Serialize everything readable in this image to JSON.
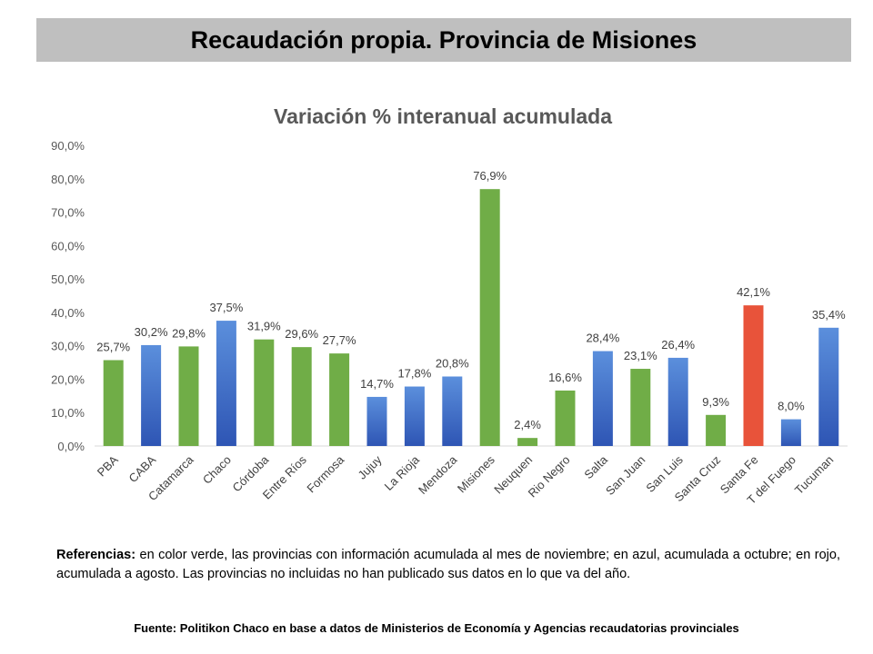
{
  "header": {
    "title": "Recaudación propia. Provincia de Misiones"
  },
  "colors": {
    "green": "#70ad47",
    "blue_top": "#5b8fdc",
    "blue_bottom": "#2e55b4",
    "red": "#e8533a"
  },
  "chart_data": {
    "type": "bar",
    "title": "Variación % interanual acumulada",
    "xlabel": "",
    "ylabel": "",
    "ylim": [
      0,
      90
    ],
    "yticks": [
      "0,0%",
      "10,0%",
      "20,0%",
      "30,0%",
      "40,0%",
      "50,0%",
      "60,0%",
      "70,0%",
      "80,0%",
      "90,0%"
    ],
    "categories": [
      "PBA",
      "CABA",
      "Catamarca",
      "Chaco",
      "Córdoba",
      "Entre Ríos",
      "Formosa",
      "Jujuy",
      "La Rioja",
      "Mendoza",
      "Misiones",
      "Neuquen",
      "Rio Negro",
      "Salta",
      "San Juan",
      "San Luis",
      "Santa Cruz",
      "Santa Fe",
      "T del Fuego",
      "Tucuman"
    ],
    "values": [
      25.7,
      30.2,
      29.8,
      37.5,
      31.9,
      29.6,
      27.7,
      14.7,
      17.8,
      20.8,
      76.9,
      2.4,
      16.6,
      28.4,
      23.1,
      26.4,
      9.3,
      42.1,
      8.0,
      35.4
    ],
    "labels": [
      "25,7%",
      "30,2%",
      "29,8%",
      "37,5%",
      "31,9%",
      "29,6%",
      "27,7%",
      "14,7%",
      "17,8%",
      "20,8%",
      "76,9%",
      "2,4%",
      "16,6%",
      "28,4%",
      "23,1%",
      "26,4%",
      "9,3%",
      "42,1%",
      "8,0%",
      "35,4%"
    ],
    "bar_colors": [
      "green",
      "blue",
      "green",
      "blue",
      "green",
      "green",
      "green",
      "blue",
      "blue",
      "blue",
      "green",
      "green",
      "green",
      "blue",
      "green",
      "blue",
      "green",
      "red",
      "blue",
      "blue"
    ]
  },
  "references": {
    "label": "Referencias:",
    "text": " en color verde, las provincias con información acumulada al mes de noviembre; en azul, acumulada a octubre; en rojo, acumulada a agosto. Las provincias no incluidas no han publicado sus datos en lo que va del año."
  },
  "source": "Fuente: Politikon Chaco en base a datos de Ministerios de Economía y Agencias recaudatorias provinciales"
}
